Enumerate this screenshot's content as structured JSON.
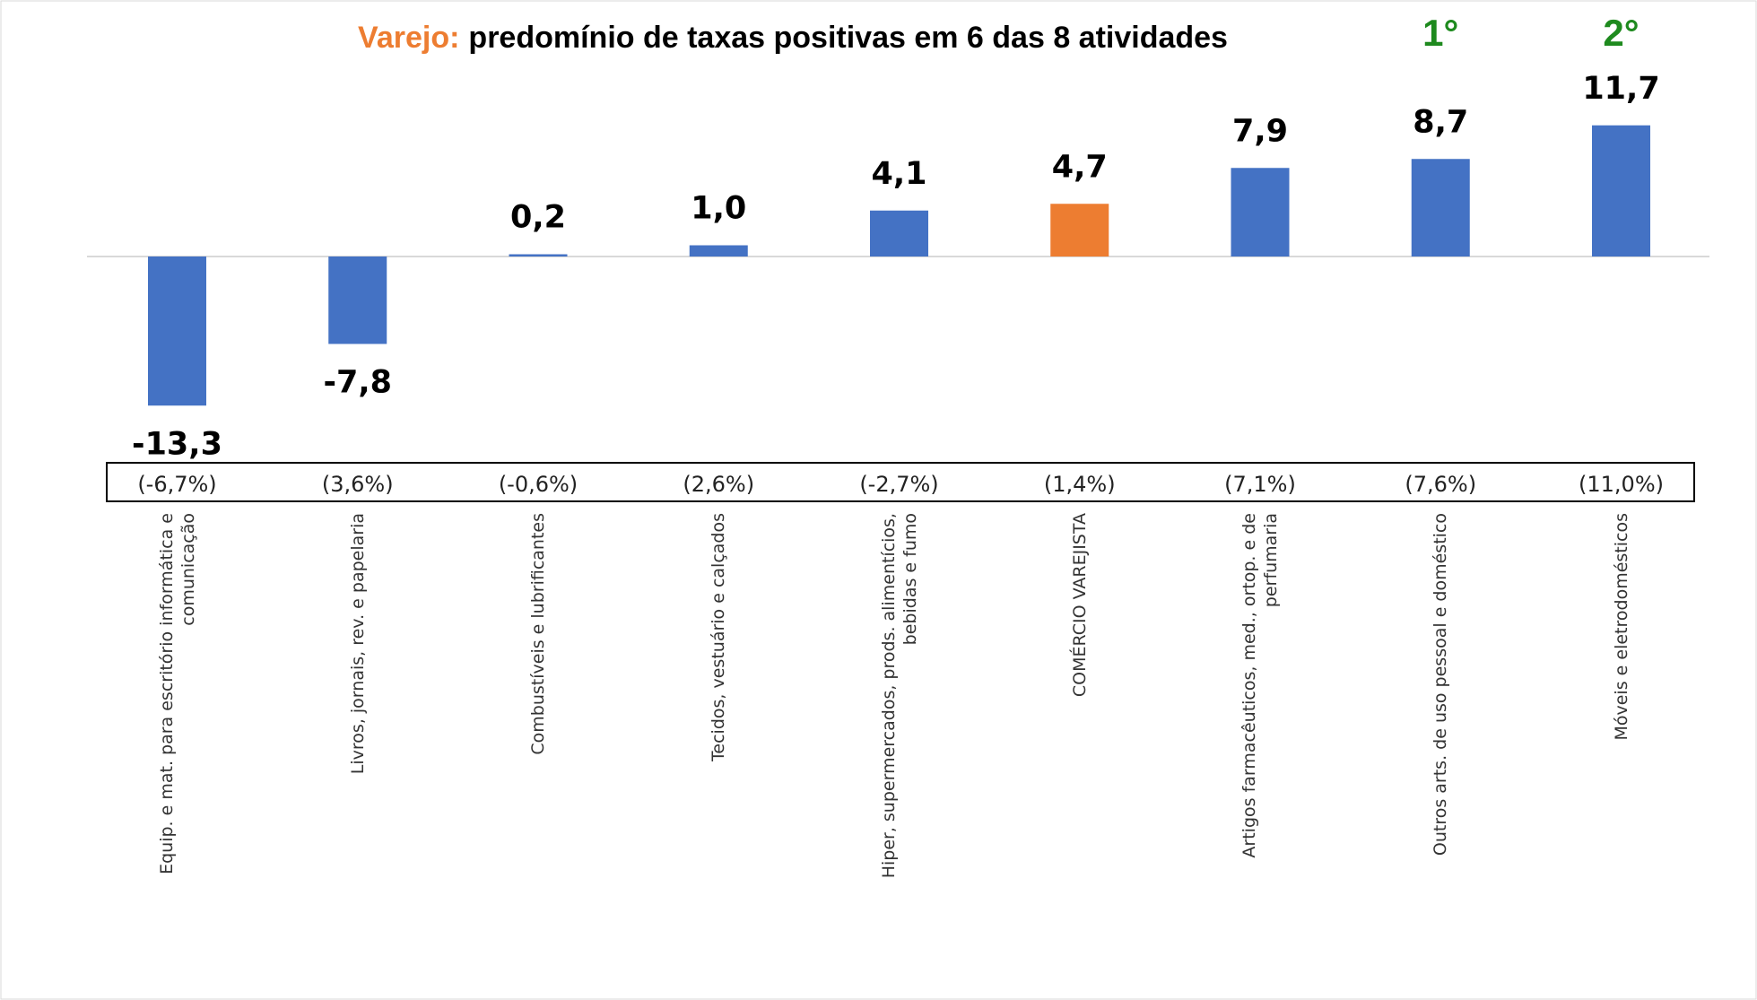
{
  "chart_data": {
    "type": "bar",
    "title_highlight": "Varejo:",
    "title": "predomínio de taxas positivas em 6 das 8 atividades",
    "categories": [
      "Equip. e mat. para escritório informática e comunicação",
      "Livros, jornais, rev. e papelaria",
      "Combustíveis e lubrificantes",
      "Tecidos, vestuário e calçados",
      "Hiper, supermercados, prods.  alimentícios, bebidas e fumo",
      "COMÉRCIO VAREJISTA",
      "Artigos farmacêuticos, med., ortop. e de perfumaria",
      "Outros arts. de uso pessoal e doméstico",
      "Móveis e eletrodomésticos"
    ],
    "values": [
      -13.3,
      -7.8,
      0.2,
      1.0,
      4.1,
      4.7,
      7.9,
      8.7,
      11.7
    ],
    "value_labels": [
      "-13,3",
      "-7,8",
      "0,2",
      "1,0",
      "4,1",
      "4,7",
      "7,9",
      "8,7",
      "11,7"
    ],
    "secondary_labels": [
      "(-6,7%)",
      "(3,6%)",
      "(-0,6%)",
      "(2,6%)",
      "(-2,7%)",
      "(1,4%)",
      "(7,1%)",
      "(7,6%)",
      "(11,0%)"
    ],
    "colors": [
      "#4472c4",
      "#4472c4",
      "#4472c4",
      "#4472c4",
      "#4472c4",
      "#ed7d31",
      "#4472c4",
      "#4472c4",
      "#4472c4"
    ],
    "annotations": [
      {
        "index": 7,
        "text": "1°"
      },
      {
        "index": 8,
        "text": "2°"
      }
    ],
    "title_highlight_color": "#ed7d31",
    "annotation_color": "#1e8a1e"
  }
}
